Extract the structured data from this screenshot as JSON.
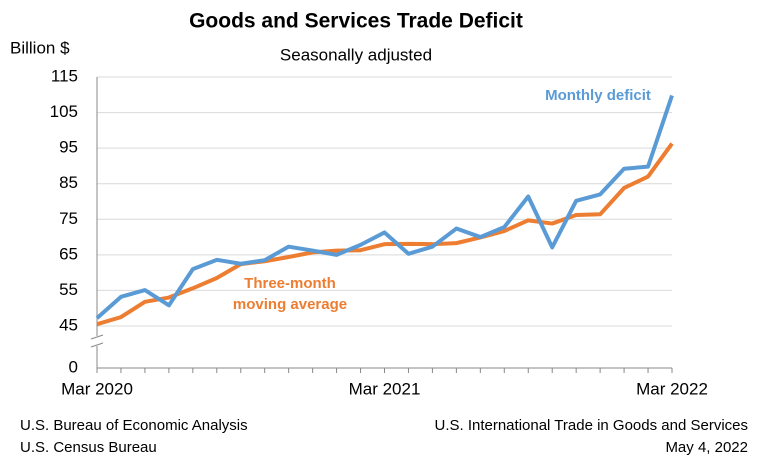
{
  "chart_data": {
    "type": "line",
    "title": "Goods and Services Trade Deficit",
    "subtitle": "Seasonally adjusted",
    "y_label": "Billion $",
    "categories": [
      "Mar 2020",
      null,
      null,
      null,
      null,
      null,
      null,
      null,
      null,
      null,
      null,
      null,
      "Mar 2021",
      null,
      null,
      null,
      null,
      null,
      null,
      null,
      null,
      null,
      null,
      null,
      "Mar 2022"
    ],
    "series": [
      {
        "name": "Monthly deficit",
        "color": "#5b9bd5",
        "values": [
          47.2,
          53.2,
          55.1,
          50.8,
          61.0,
          63.6,
          62.5,
          63.5,
          67.3,
          66.2,
          65.0,
          67.8,
          71.3,
          65.3,
          67.3,
          72.4,
          70.0,
          72.8,
          81.4,
          67.1,
          80.2,
          82.0,
          89.2,
          89.8,
          109.8
        ]
      },
      {
        "name": [
          "Three-month",
          "moving average"
        ],
        "color": "#ed7d31",
        "values": [
          45.5,
          47.5,
          51.8,
          53.0,
          55.6,
          58.5,
          62.4,
          63.2,
          64.4,
          65.7,
          66.2,
          66.3,
          68.0,
          68.1,
          68.0,
          68.3,
          69.9,
          71.7,
          74.7,
          73.8,
          76.2,
          76.4,
          83.8,
          87.0,
          96.3
        ]
      }
    ],
    "ylim": [
      0,
      115
    ],
    "yticks": [
      0,
      45,
      55,
      65,
      75,
      85,
      95,
      105,
      115
    ],
    "axis_break": true,
    "grid": true,
    "footer": {
      "left": [
        "U.S. Bureau of Economic Analysis",
        "U.S. Census Bureau"
      ],
      "right": [
        "U.S. International Trade in Goods and Services",
        "May 4, 2022"
      ]
    }
  }
}
